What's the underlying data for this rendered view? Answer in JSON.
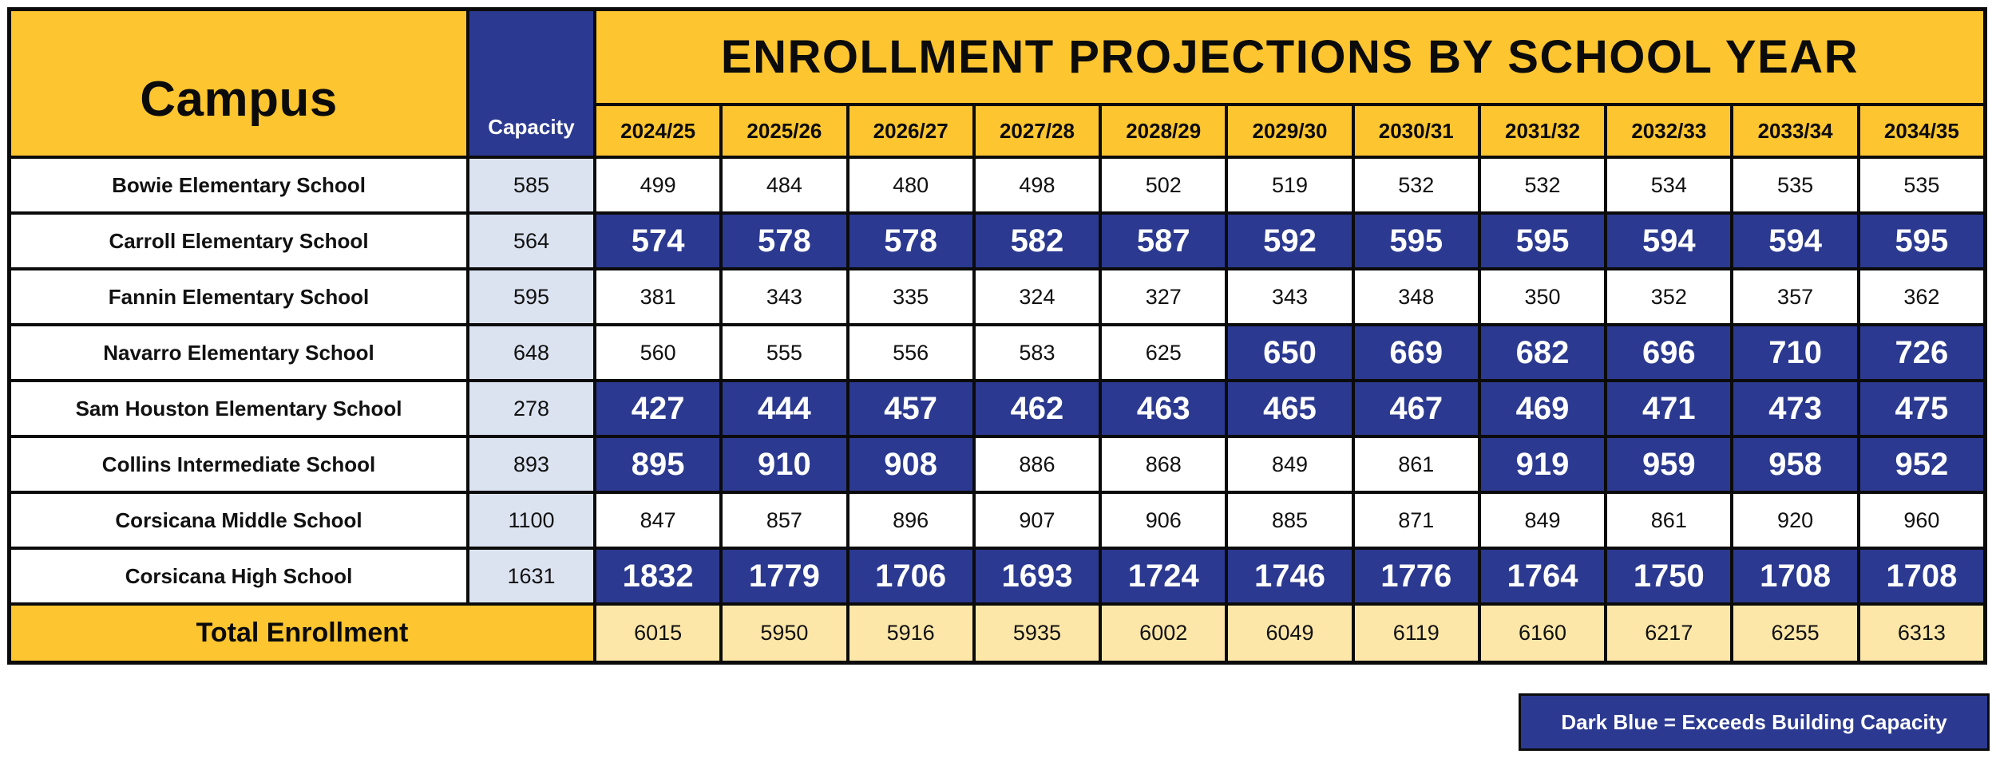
{
  "chart_data": {
    "type": "table",
    "title": "ENROLLMENT PROJECTIONS BY SCHOOL YEAR",
    "campus_header": "Campus",
    "capacity_header": "Capacity",
    "years": [
      "2024/25",
      "2025/26",
      "2026/27",
      "2027/28",
      "2028/29",
      "2029/30",
      "2030/31",
      "2031/32",
      "2032/33",
      "2033/34",
      "2034/35"
    ],
    "rows": [
      {
        "campus": "Bowie Elementary School",
        "capacity": "585",
        "values": [
          "499",
          "484",
          "480",
          "498",
          "502",
          "519",
          "532",
          "532",
          "534",
          "535",
          "535"
        ],
        "exceeds": [
          false,
          false,
          false,
          false,
          false,
          false,
          false,
          false,
          false,
          false,
          false
        ]
      },
      {
        "campus": "Carroll Elementary School",
        "capacity": "564",
        "values": [
          "574",
          "578",
          "578",
          "582",
          "587",
          "592",
          "595",
          "595",
          "594",
          "594",
          "595"
        ],
        "exceeds": [
          true,
          true,
          true,
          true,
          true,
          true,
          true,
          true,
          true,
          true,
          true
        ]
      },
      {
        "campus": "Fannin Elementary School",
        "capacity": "595",
        "values": [
          "381",
          "343",
          "335",
          "324",
          "327",
          "343",
          "348",
          "350",
          "352",
          "357",
          "362"
        ],
        "exceeds": [
          false,
          false,
          false,
          false,
          false,
          false,
          false,
          false,
          false,
          false,
          false
        ]
      },
      {
        "campus": "Navarro Elementary School",
        "capacity": "648",
        "values": [
          "560",
          "555",
          "556",
          "583",
          "625",
          "650",
          "669",
          "682",
          "696",
          "710",
          "726"
        ],
        "exceeds": [
          false,
          false,
          false,
          false,
          false,
          true,
          true,
          true,
          true,
          true,
          true
        ]
      },
      {
        "campus": "Sam Houston Elementary School",
        "capacity": "278",
        "values": [
          "427",
          "444",
          "457",
          "462",
          "463",
          "465",
          "467",
          "469",
          "471",
          "473",
          "475"
        ],
        "exceeds": [
          true,
          true,
          true,
          true,
          true,
          true,
          true,
          true,
          true,
          true,
          true
        ]
      },
      {
        "campus": "Collins Intermediate School",
        "capacity": "893",
        "values": [
          "895",
          "910",
          "908",
          "886",
          "868",
          "849",
          "861",
          "919",
          "959",
          "958",
          "952"
        ],
        "exceeds": [
          true,
          true,
          true,
          false,
          false,
          false,
          false,
          true,
          true,
          true,
          true
        ]
      },
      {
        "campus": "Corsicana Middle School",
        "capacity": "1100",
        "values": [
          "847",
          "857",
          "896",
          "907",
          "906",
          "885",
          "871",
          "849",
          "861",
          "920",
          "960"
        ],
        "exceeds": [
          false,
          false,
          false,
          false,
          false,
          false,
          false,
          false,
          false,
          false,
          false
        ]
      },
      {
        "campus": "Corsicana High School",
        "capacity": "1631",
        "values": [
          "1832",
          "1779",
          "1706",
          "1693",
          "1724",
          "1746",
          "1776",
          "1764",
          "1750",
          "1708",
          "1708"
        ],
        "exceeds": [
          true,
          true,
          true,
          true,
          true,
          true,
          true,
          true,
          true,
          true,
          true
        ]
      }
    ],
    "total_label": "Total Enrollment",
    "totals": [
      "6015",
      "5950",
      "5916",
      "5935",
      "6002",
      "6049",
      "6119",
      "6160",
      "6217",
      "6255",
      "6313"
    ],
    "legend": "Dark Blue = Exceeds Building Capacity",
    "colors": {
      "exceeds": "#2b3990",
      "header": "#fdc52f",
      "total": "#fde7a8",
      "capacity": "#dbe3f1"
    }
  }
}
